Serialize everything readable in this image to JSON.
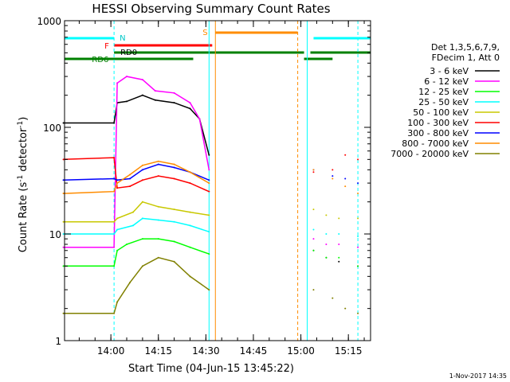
{
  "chart_data": {
    "type": "line",
    "title": "HESSI Observing Summary Count Rates",
    "xlabel": "Start Time (04-Jun-15 13:45:22)",
    "ylabel_main": "Count Rate (s",
    "ylabel_sup1": "-1",
    "ylabel_mid": " detector",
    "ylabel_sup2": "-1",
    "ylabel_end": ")",
    "y_scale": "log",
    "ylim": [
      1,
      1000
    ],
    "xlim": [
      "13:45:22",
      "15:22:00"
    ],
    "x_ticks": [
      "14:00",
      "14:15",
      "14:30",
      "14:45",
      "15:00",
      "15:15"
    ],
    "y_ticks": [
      "1",
      "10",
      "100",
      "1000"
    ],
    "legend_header": [
      "Det 1,3,5,6,7,9,",
      "FDecim 1, Att 0"
    ],
    "legend_position": "right",
    "footer_date": "1-Nov-2017 14:35",
    "flag_labels": {
      "N": "N",
      "F": "F",
      "RD0": "RD0",
      "RD6": "RD6",
      "S": "S"
    },
    "series": [
      {
        "name": "3 - 6 keV",
        "color": "#000000",
        "points": [
          [
            "13:45",
            110
          ],
          [
            "14:01",
            110
          ],
          [
            "14:02",
            170
          ],
          [
            "14:05",
            175
          ],
          [
            "14:10",
            200
          ],
          [
            "14:14",
            180
          ],
          [
            "14:20",
            170
          ],
          [
            "14:25",
            150
          ],
          [
            "14:28",
            120
          ],
          [
            "14:31",
            55
          ],
          [
            "15:04",
            7
          ],
          [
            "15:08",
            6
          ],
          [
            "15:12",
            5.5
          ],
          [
            "15:18",
            5
          ]
        ]
      },
      {
        "name": "6 - 12 keV",
        "color": "#ff00ff",
        "points": [
          [
            "13:45",
            7.5
          ],
          [
            "14:01",
            7.5
          ],
          [
            "14:02",
            260
          ],
          [
            "14:05",
            300
          ],
          [
            "14:10",
            280
          ],
          [
            "14:14",
            220
          ],
          [
            "14:20",
            210
          ],
          [
            "14:25",
            170
          ],
          [
            "14:28",
            120
          ],
          [
            "14:31",
            40
          ],
          [
            "15:04",
            9
          ],
          [
            "15:08",
            8
          ],
          [
            "15:12",
            8
          ],
          [
            "15:18",
            7.5
          ]
        ]
      },
      {
        "name": "12 - 25 keV",
        "color": "#00ff00",
        "points": [
          [
            "13:45",
            5
          ],
          [
            "14:01",
            5
          ],
          [
            "14:02",
            7
          ],
          [
            "14:05",
            8
          ],
          [
            "14:10",
            9
          ],
          [
            "14:15",
            9
          ],
          [
            "14:20",
            8.5
          ],
          [
            "14:25",
            7.5
          ],
          [
            "14:31",
            6.5
          ],
          [
            "15:04",
            7
          ],
          [
            "15:08",
            6
          ],
          [
            "15:12",
            6
          ],
          [
            "15:18",
            5
          ]
        ]
      },
      {
        "name": "25 - 50 keV",
        "color": "#00ffff",
        "points": [
          [
            "13:45",
            10
          ],
          [
            "14:01",
            10
          ],
          [
            "14:02",
            11
          ],
          [
            "14:07",
            12
          ],
          [
            "14:10",
            14
          ],
          [
            "14:15",
            13.5
          ],
          [
            "14:20",
            13
          ],
          [
            "14:25",
            12
          ],
          [
            "14:31",
            10.5
          ],
          [
            "15:04",
            11
          ],
          [
            "15:08",
            10
          ],
          [
            "15:12",
            10
          ],
          [
            "15:18",
            9.5
          ]
        ]
      },
      {
        "name": "50 - 100 keV",
        "color": "#c8c800",
        "points": [
          [
            "13:45",
            13
          ],
          [
            "14:01",
            13
          ],
          [
            "14:02",
            14
          ],
          [
            "14:07",
            16
          ],
          [
            "14:10",
            20
          ],
          [
            "14:15",
            18
          ],
          [
            "14:20",
            17
          ],
          [
            "14:25",
            16
          ],
          [
            "14:31",
            15
          ],
          [
            "15:04",
            17
          ],
          [
            "15:08",
            15
          ],
          [
            "15:12",
            14
          ],
          [
            "15:18",
            14
          ]
        ]
      },
      {
        "name": "100 - 300 keV",
        "color": "#ff0000",
        "points": [
          [
            "13:45",
            50
          ],
          [
            "14:01",
            52
          ],
          [
            "14:02",
            27
          ],
          [
            "14:06",
            28
          ],
          [
            "14:10",
            32
          ],
          [
            "14:15",
            35
          ],
          [
            "14:20",
            33
          ],
          [
            "14:25",
            30
          ],
          [
            "14:31",
            25
          ],
          [
            "15:04",
            38
          ],
          [
            "15:10",
            40
          ],
          [
            "15:14",
            55
          ],
          [
            "15:18",
            50
          ]
        ]
      },
      {
        "name": "300 - 800 keV",
        "color": "#0000ff",
        "points": [
          [
            "13:45",
            32
          ],
          [
            "14:01",
            33
          ],
          [
            "14:02",
            32
          ],
          [
            "14:06",
            33
          ],
          [
            "14:10",
            40
          ],
          [
            "14:15",
            45
          ],
          [
            "14:20",
            42
          ],
          [
            "14:25",
            38
          ],
          [
            "14:31",
            32
          ],
          [
            "15:04",
            40
          ],
          [
            "15:10",
            35
          ],
          [
            "15:14",
            33
          ],
          [
            "15:18",
            30
          ]
        ]
      },
      {
        "name": "800 - 7000 keV",
        "color": "#ff8c00",
        "points": [
          [
            "13:45",
            24
          ],
          [
            "14:01",
            25
          ],
          [
            "14:02",
            30
          ],
          [
            "14:06",
            36
          ],
          [
            "14:10",
            44
          ],
          [
            "14:15",
            48
          ],
          [
            "14:20",
            45
          ],
          [
            "14:25",
            38
          ],
          [
            "14:31",
            30
          ],
          [
            "15:04",
            40
          ],
          [
            "15:10",
            33
          ],
          [
            "15:14",
            28
          ],
          [
            "15:18",
            24
          ]
        ]
      },
      {
        "name": "7000 - 20000 keV",
        "color": "#808000",
        "points": [
          [
            "13:45",
            1.8
          ],
          [
            "14:01",
            1.8
          ],
          [
            "14:02",
            2.3
          ],
          [
            "14:06",
            3.5
          ],
          [
            "14:10",
            5
          ],
          [
            "14:15",
            6
          ],
          [
            "14:20",
            5.5
          ],
          [
            "14:25",
            4
          ],
          [
            "14:31",
            3
          ],
          [
            "15:04",
            3
          ],
          [
            "15:10",
            2.5
          ],
          [
            "15:14",
            2
          ],
          [
            "15:18",
            1.8
          ]
        ]
      }
    ]
  }
}
